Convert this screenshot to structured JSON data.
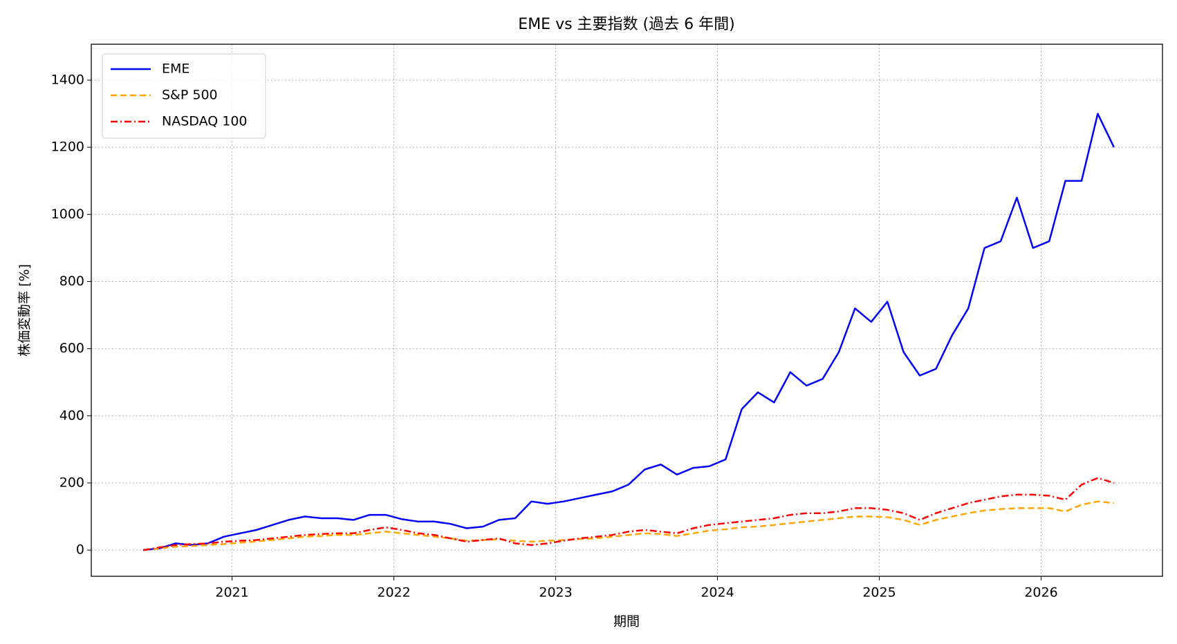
{
  "chart_data": {
    "type": "line",
    "title": "EME vs 主要指数 (過去 6 年間)",
    "xlabel": "期間",
    "ylabel": "株価変動率 [%]",
    "x": [
      2020.45,
      2020.55,
      2020.65,
      2020.75,
      2020.85,
      2020.95,
      2021.05,
      2021.15,
      2021.25,
      2021.35,
      2021.45,
      2021.55,
      2021.65,
      2021.75,
      2021.85,
      2021.95,
      2022.05,
      2022.15,
      2022.25,
      2022.35,
      2022.45,
      2022.55,
      2022.65,
      2022.75,
      2022.85,
      2022.95,
      2023.05,
      2023.15,
      2023.25,
      2023.35,
      2023.45,
      2023.55,
      2023.65,
      2023.75,
      2023.85,
      2023.95,
      2024.05,
      2024.15,
      2024.25,
      2024.35,
      2024.45,
      2024.55,
      2024.65,
      2024.75,
      2024.85,
      2024.95,
      2025.05,
      2025.15,
      2025.25,
      2025.35,
      2025.45,
      2025.55,
      2025.65,
      2025.75,
      2025.85,
      2025.95,
      2026.05,
      2026.15,
      2026.25,
      2026.35,
      2026.45
    ],
    "series": [
      {
        "name": "EME",
        "color": "#0000ff",
        "linestyle": "solid",
        "values": [
          0,
          5,
          20,
          15,
          20,
          40,
          50,
          60,
          75,
          90,
          100,
          95,
          95,
          90,
          105,
          105,
          92,
          85,
          85,
          78,
          65,
          70,
          90,
          95,
          145,
          138,
          145,
          155,
          165,
          175,
          195,
          240,
          255,
          225,
          245,
          250,
          270,
          420,
          470,
          440,
          530,
          490,
          510,
          590,
          720,
          680,
          740,
          590,
          520,
          540,
          640,
          720,
          900,
          920,
          1050,
          900,
          920,
          1100,
          1100,
          1300,
          1200
        ]
      },
      {
        "name": "S&P 500",
        "color": "#ffa500",
        "linestyle": "dashed",
        "values": [
          0,
          5,
          10,
          12,
          15,
          18,
          22,
          26,
          30,
          35,
          40,
          42,
          45,
          45,
          50,
          55,
          50,
          45,
          40,
          35,
          28,
          30,
          32,
          28,
          25,
          28,
          30,
          33,
          35,
          40,
          45,
          50,
          48,
          42,
          50,
          58,
          62,
          68,
          70,
          75,
          80,
          85,
          90,
          95,
          100,
          100,
          98,
          90,
          75,
          90,
          100,
          110,
          118,
          122,
          125,
          125,
          125,
          115,
          135,
          145,
          140
        ]
      },
      {
        "name": "NASDAQ 100",
        "color": "#ff0000",
        "linestyle": "dashdot",
        "values": [
          0,
          8,
          15,
          18,
          20,
          25,
          28,
          30,
          35,
          40,
          45,
          48,
          50,
          50,
          60,
          68,
          60,
          50,
          45,
          35,
          25,
          30,
          35,
          20,
          15,
          20,
          28,
          35,
          40,
          45,
          55,
          60,
          55,
          50,
          65,
          75,
          80,
          85,
          90,
          95,
          105,
          110,
          110,
          115,
          125,
          125,
          120,
          110,
          90,
          110,
          125,
          140,
          150,
          160,
          165,
          165,
          162,
          150,
          195,
          215,
          200
        ]
      }
    ],
    "xlim": [
      2020.13,
      2026.75
    ],
    "xticks": [
      2021,
      2022,
      2023,
      2024,
      2025,
      2026
    ],
    "ylim": [
      -78,
      1507
    ],
    "yticks": [
      0,
      200,
      400,
      600,
      800,
      1000,
      1200,
      1400
    ],
    "grid": true,
    "legend": "upper left"
  }
}
